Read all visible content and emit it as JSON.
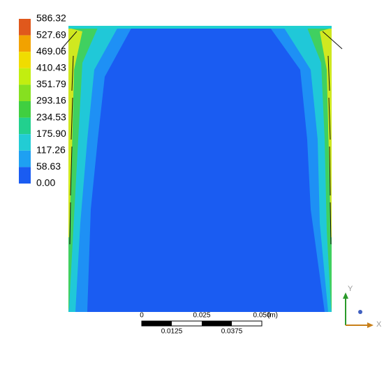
{
  "colorbar": {
    "labels": [
      "586.32",
      "527.69",
      "469.06",
      "410.43",
      "351.79",
      "293.16",
      "234.53",
      "175.90",
      "117.26",
      "58.63",
      "0.00"
    ]
  },
  "scale_bar": {
    "top_labels": [
      "0",
      "0.025",
      "0.050"
    ],
    "unit": "(m)",
    "bottom_labels": [
      "0.0125",
      "0.0375"
    ]
  },
  "triad": {
    "y": "Y",
    "x": "X"
  }
}
